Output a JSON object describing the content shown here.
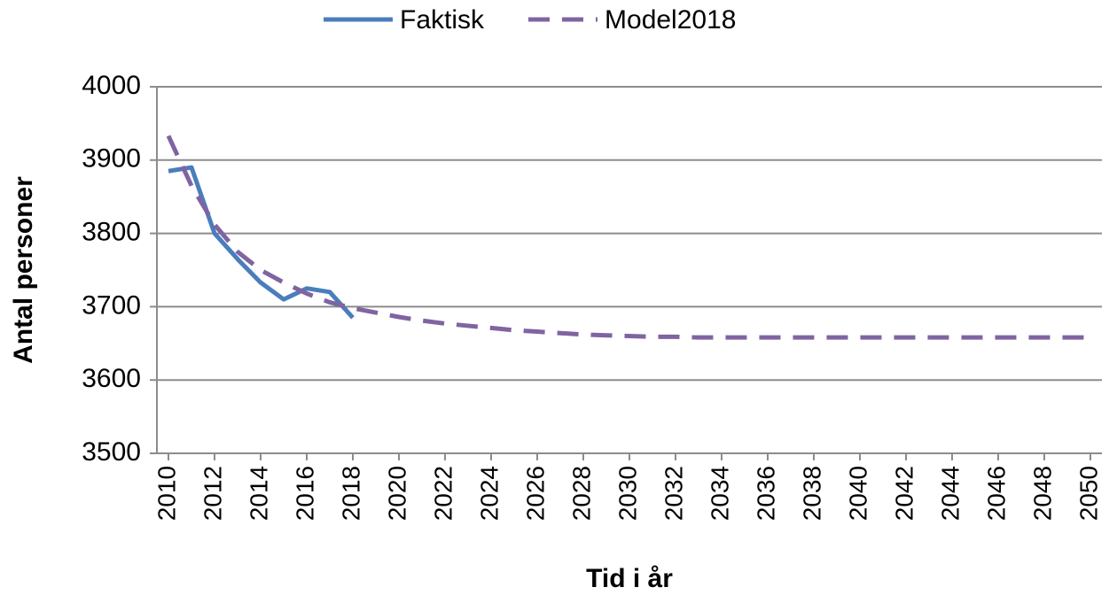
{
  "chart_data": {
    "type": "line",
    "xlabel": "Tid i år",
    "ylabel": "Antal personer",
    "x": [
      2010,
      2011,
      2012,
      2013,
      2014,
      2015,
      2016,
      2017,
      2018,
      2019,
      2020,
      2021,
      2022,
      2023,
      2024,
      2025,
      2026,
      2027,
      2028,
      2029,
      2030,
      2031,
      2032,
      2033,
      2034,
      2035,
      2036,
      2037,
      2038,
      2039,
      2040,
      2041,
      2042,
      2043,
      2044,
      2045,
      2046,
      2047,
      2048,
      2049,
      2050
    ],
    "series": [
      {
        "name": "Faktisk",
        "color": "#4a7ebb",
        "dashed": false,
        "values": [
          3885,
          3890,
          3800,
          3765,
          3733,
          3710,
          3725,
          3720,
          3685,
          null,
          null,
          null,
          null,
          null,
          null,
          null,
          null,
          null,
          null,
          null,
          null,
          null,
          null,
          null,
          null,
          null,
          null,
          null,
          null,
          null,
          null,
          null,
          null,
          null,
          null,
          null,
          null,
          null,
          null,
          null,
          null
        ]
      },
      {
        "name": "Model2018",
        "color": "#8064a2",
        "dashed": true,
        "values": [
          3933,
          3865,
          3812,
          3775,
          3750,
          3733,
          3718,
          3706,
          3698,
          3692,
          3686,
          3681,
          3677,
          3674,
          3671,
          3668,
          3666,
          3664,
          3662,
          3661,
          3660,
          3659,
          3659,
          3658,
          3658,
          3658,
          3658,
          3658,
          3658,
          3658,
          3658,
          3658,
          3658,
          3658,
          3658,
          3658,
          3658,
          3658,
          3658,
          3658,
          3658
        ]
      }
    ],
    "xlim": [
      2009.5,
      2050.5
    ],
    "xticks": [
      2010,
      2012,
      2014,
      2016,
      2018,
      2020,
      2022,
      2024,
      2026,
      2028,
      2030,
      2032,
      2034,
      2036,
      2038,
      2040,
      2042,
      2044,
      2046,
      2048,
      2050
    ],
    "ylim": [
      3500,
      4000
    ],
    "yticks": [
      3500,
      3600,
      3700,
      3800,
      3900,
      4000
    ],
    "grid": true,
    "legend": "top"
  }
}
